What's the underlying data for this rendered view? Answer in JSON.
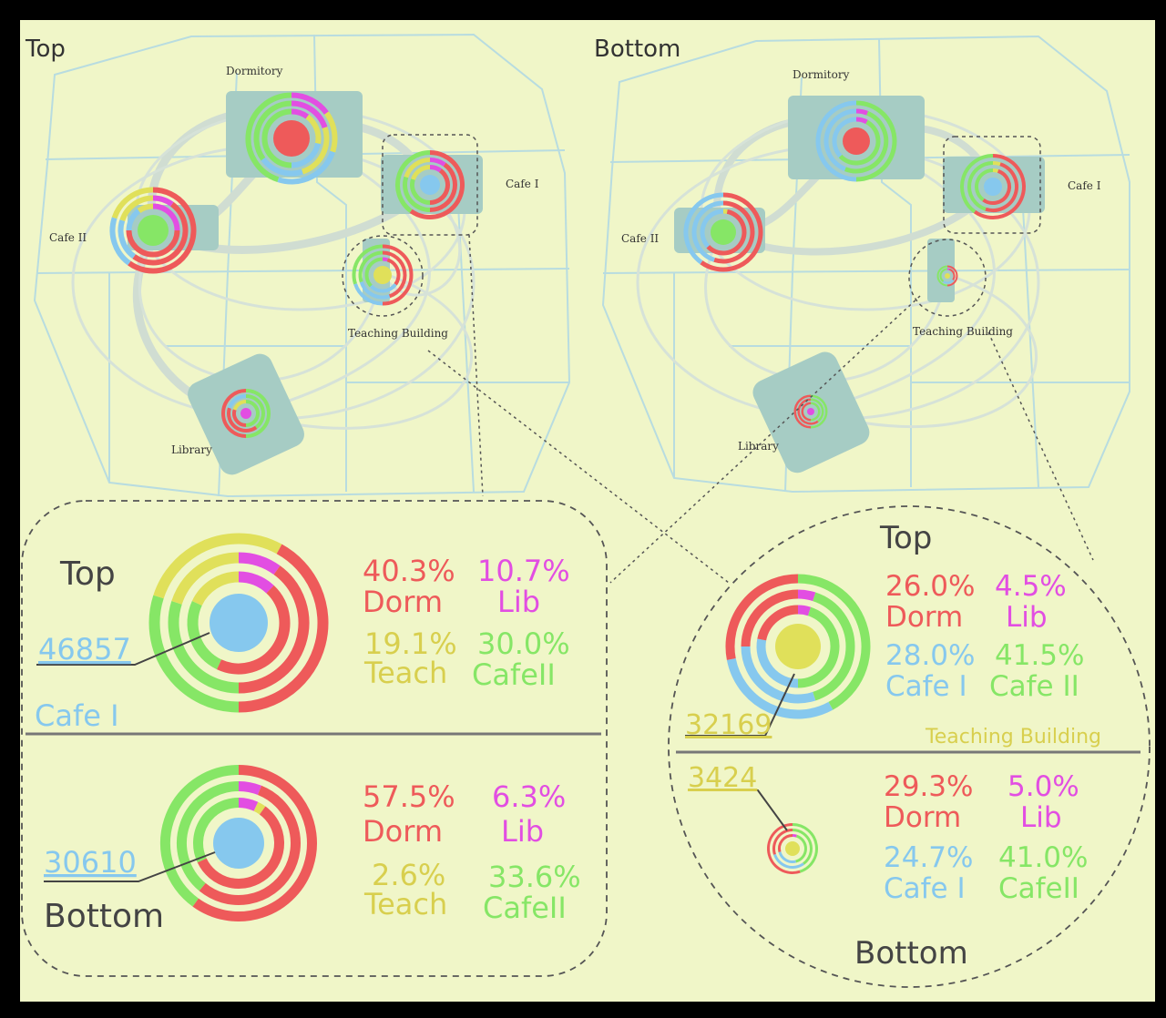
{
  "colors": {
    "frame": "#000000",
    "background": "#f0f6c8",
    "dorm": "#ee5a5a",
    "lib": "#e24ee2",
    "teach": "#e0e05a",
    "cafe1": "#86c8ee",
    "cafe2": "#86e666",
    "road": "#b8dce0",
    "building": "#a6ccc4",
    "link": "#d0ddd2",
    "dash": "#666666",
    "label": "#333333"
  },
  "maps": [
    {
      "id": "top",
      "title": "Top",
      "places": {
        "dormitory": "Dormitory",
        "cafe1": "Cafe I",
        "cafe2": "Cafe II",
        "teaching": "Teaching Building",
        "library": "Library"
      }
    },
    {
      "id": "bottom",
      "title": "Bottom",
      "places": {
        "dormitory": "Dormitory",
        "cafe1": "Cafe I",
        "cafe2": "Cafe II",
        "teaching": "Teaching Building",
        "library": "Library"
      }
    }
  ],
  "detail_left": {
    "place": "Cafe I",
    "top": {
      "label": "Top",
      "count": "46857",
      "dorm_pct": "40.3%",
      "dorm": "Dorm",
      "lib_pct": "10.7%",
      "lib": "Lib",
      "teach_pct": "19.1%",
      "teach": "Teach",
      "cafe_pct": "30.0%",
      "cafe": "CafeII"
    },
    "bottom": {
      "label": "Bottom",
      "count": "30610",
      "dorm_pct": "57.5%",
      "dorm": "Dorm",
      "lib_pct": "6.3%",
      "lib": "Lib",
      "teach_pct": "2.6%",
      "teach": "Teach",
      "cafe_pct": "33.6%",
      "cafe": "CafeII"
    }
  },
  "detail_right": {
    "place": "Teaching Building",
    "top": {
      "label": "Top",
      "count": "32169",
      "dorm_pct": "26.0%",
      "dorm": "Dorm",
      "lib_pct": "4.5%",
      "lib": "Lib",
      "cafe1_pct": "28.0%",
      "cafe1": "Cafe I",
      "cafe2_pct": "41.5%",
      "cafe2": "Cafe II"
    },
    "bottom": {
      "label": "Bottom",
      "count": "3424",
      "dorm_pct": "29.3%",
      "dorm": "Dorm",
      "lib_pct": "5.0%",
      "lib": "Lib",
      "cafe1_pct": "24.7%",
      "cafe1": "Cafe I",
      "cafe2_pct": "41.0%",
      "cafe2": "CafeII"
    }
  }
}
